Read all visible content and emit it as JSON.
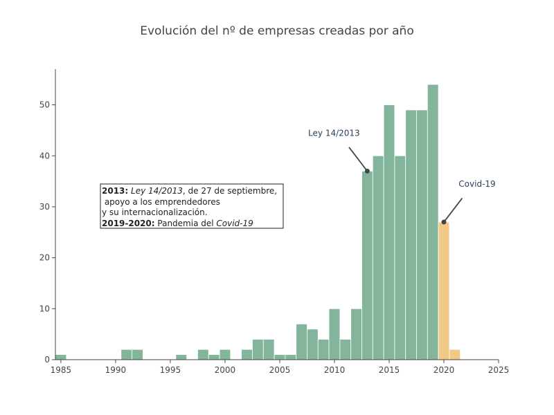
{
  "chart_data": {
    "type": "bar",
    "title": "Evolución del nº de empresas creadas por año",
    "xlabel": "",
    "ylabel": "",
    "xlim": [
      1984.5,
      2025
    ],
    "ylim": [
      0,
      57
    ],
    "x_ticks": [
      "1985",
      "1990",
      "1995",
      "2000",
      "2005",
      "2010",
      "2015",
      "2020",
      "2025"
    ],
    "y_ticks": [
      "0",
      "10",
      "20",
      "30",
      "40",
      "50"
    ],
    "grid": false,
    "legend": "none",
    "colors": {
      "normal": "#83b59c",
      "covid": "#f1c987"
    },
    "series": [
      {
        "x": [
          1985,
          1991,
          1992,
          1996,
          1998,
          1999,
          2000,
          2002,
          2003,
          2004,
          2005,
          2006,
          2007,
          2008,
          2009,
          2010,
          2011,
          2012,
          2013,
          2014,
          2015,
          2016,
          2017,
          2018,
          2019
        ],
        "values": [
          1,
          2,
          2,
          1,
          2,
          1,
          2,
          2,
          4,
          4,
          1,
          1,
          7,
          6,
          4,
          10,
          4,
          10,
          37,
          40,
          50,
          40,
          49,
          49,
          54
        ],
        "color": "#83b59c"
      },
      {
        "x": [
          2020,
          2021
        ],
        "values": [
          27,
          2
        ],
        "color": "#f1c987"
      }
    ],
    "annotations": [
      {
        "text": "Ley 14/2013",
        "x": 2013,
        "y": 37
      },
      {
        "text": "Covid-19",
        "x": 2020,
        "y": 27
      }
    ]
  },
  "note": {
    "line1_bold": "2013:",
    "line1_italic": "Ley 14/2013",
    "line1_rest": ", de 27 de septiembre,",
    "line2": " apoyo a los emprendedores",
    "line3": "y su internacionalización.",
    "line4_bold": "2019-2020:",
    "line4_rest": " Pandemia del ",
    "line4_italic": "Covid-19"
  }
}
